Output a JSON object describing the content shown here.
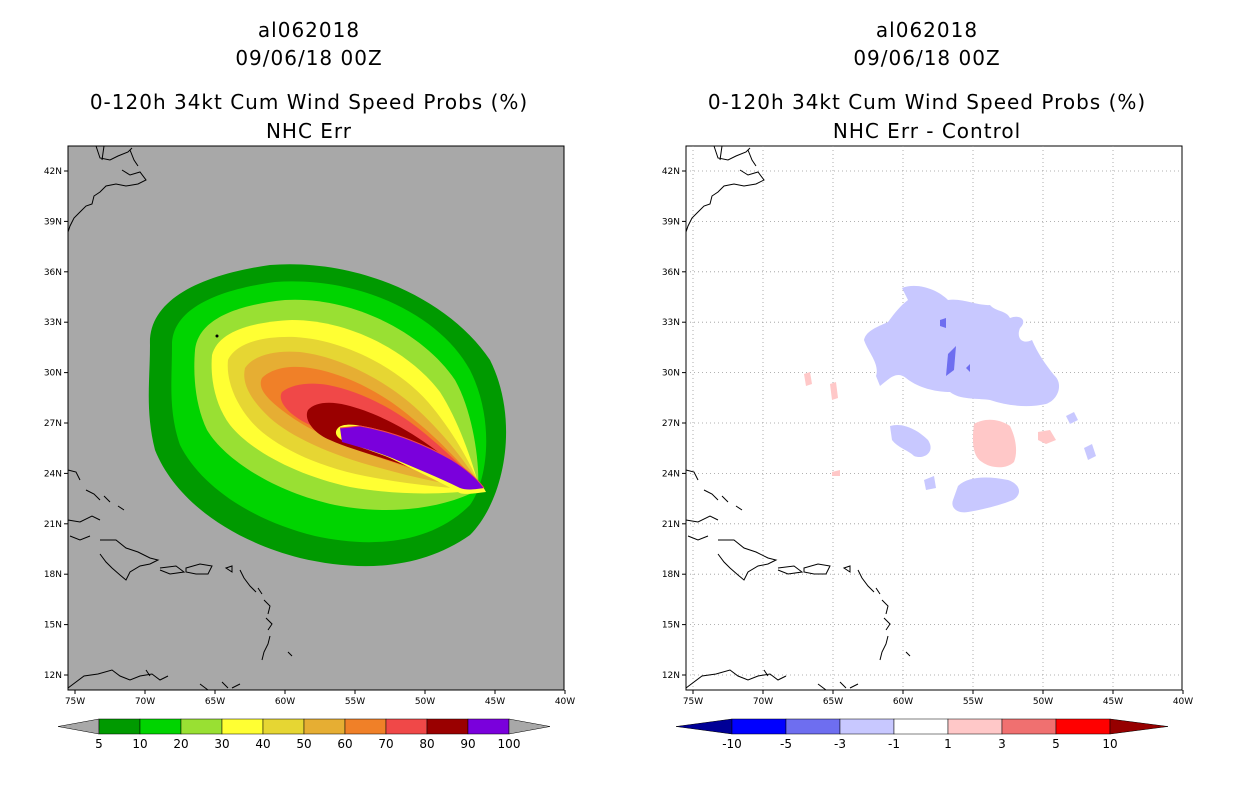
{
  "panels": [
    {
      "storm_id": "al062018",
      "datetime": "09/06/18 00Z",
      "product": "0-120h 34kt Cum Wind Speed Probs (%)",
      "subtitle": "NHC Err",
      "background_color": "#a8a8a8",
      "colorbar": {
        "labels": [
          "5",
          "10",
          "20",
          "30",
          "40",
          "50",
          "60",
          "70",
          "80",
          "90",
          "100"
        ],
        "colors": [
          "#009a00",
          "#00d400",
          "#99e033",
          "#ffff33",
          "#e6d633",
          "#e6ae33",
          "#f08028",
          "#f04848",
          "#9a0000",
          "#7a00dc"
        ],
        "end_color": "#a8a8a8"
      }
    },
    {
      "storm_id": "al062018",
      "datetime": "09/06/18 00Z",
      "product": "0-120h 34kt Cum Wind Speed Probs (%)",
      "subtitle": "NHC Err - Control",
      "background_color": "#ffffff",
      "colorbar": {
        "labels": [
          "-10",
          "-5",
          "-3",
          "-1",
          "1",
          "3",
          "5",
          "10"
        ],
        "colors": [
          "#0000ff",
          "#6e6ef0",
          "#c8c8ff",
          "#ffffff",
          "#ffc8c8",
          "#f07070",
          "#ff0000"
        ],
        "left_end_color": "#000096",
        "right_end_color": "#960000"
      }
    }
  ],
  "axes": {
    "lat_labels": [
      "42N",
      "39N",
      "36N",
      "33N",
      "30N",
      "27N",
      "24N",
      "21N",
      "18N",
      "15N",
      "12N"
    ],
    "lon_labels": [
      "75W",
      "70W",
      "65W",
      "60W",
      "55W",
      "50W",
      "45W",
      "40W"
    ]
  }
}
